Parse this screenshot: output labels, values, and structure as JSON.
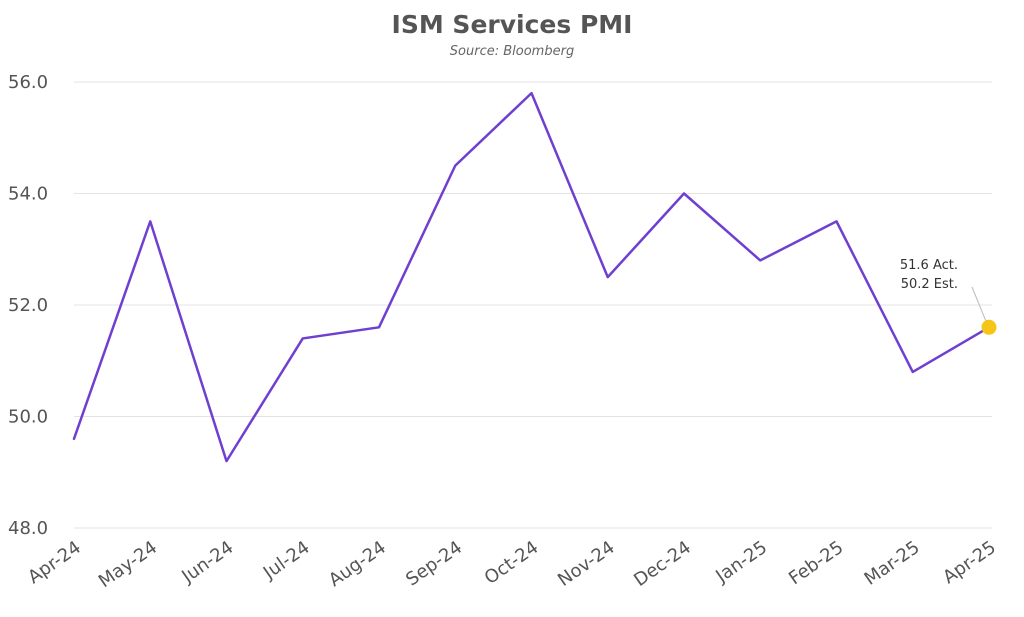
{
  "chart_data": {
    "type": "line",
    "title": "ISM Services PMI",
    "subtitle": "Source: Bloomberg",
    "xlabel": "",
    "ylabel": "",
    "categories": [
      "Apr-24",
      "May-24",
      "Jun-24",
      "Jul-24",
      "Aug-24",
      "Sep-24",
      "Oct-24",
      "Nov-24",
      "Dec-24",
      "Jan-25",
      "Feb-25",
      "Mar-25",
      "Apr-25"
    ],
    "yticks": [
      "48.0",
      "50.0",
      "52.0",
      "54.0",
      "56.0"
    ],
    "ylim": [
      48,
      56.8
    ],
    "grid": true,
    "series": [
      {
        "values": [
          49.6,
          53.5,
          49.2,
          51.4,
          51.6,
          54.5,
          55.8,
          52.5,
          54.0,
          52.8,
          53.5,
          50.8,
          51.6
        ],
        "color": "#6f3fd0"
      }
    ],
    "annotation": {
      "category": "Apr-24",
      "target_category": "Apr-25",
      "value": 51.6,
      "marker_color": "#f5c518",
      "lines": [
        "51.6 Act.",
        "50.2 Est."
      ]
    }
  }
}
